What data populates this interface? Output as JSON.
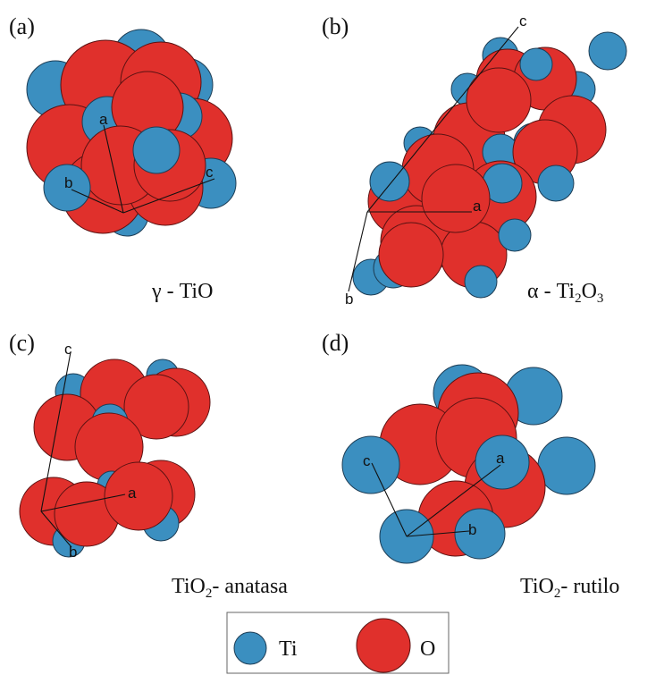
{
  "colors": {
    "ti": "#3b8fc0",
    "o": "#e0302c"
  },
  "panels": [
    {
      "label": "(a)",
      "caption_greek": "γ",
      "caption_rest": " - TiO",
      "axes": [
        "a",
        "b",
        "c"
      ]
    },
    {
      "label": "(b)",
      "caption_greek": "α",
      "caption_rest": " - Ti",
      "caption_sub1": "2",
      "caption_mid": "O",
      "caption_sub2": "3",
      "axes": [
        "a",
        "b",
        "c"
      ]
    },
    {
      "label": "(c)",
      "caption_main": "TiO",
      "caption_sub": "2",
      "caption_tail": "- anatasa",
      "axes": [
        "a",
        "b",
        "c"
      ]
    },
    {
      "label": "(d)",
      "caption_main": "TiO",
      "caption_sub": "2",
      "caption_tail": "- rutilo",
      "axes": [
        "a",
        "b",
        "c"
      ]
    }
  ],
  "legend": {
    "ti_label": "Ti",
    "o_label": "O"
  }
}
